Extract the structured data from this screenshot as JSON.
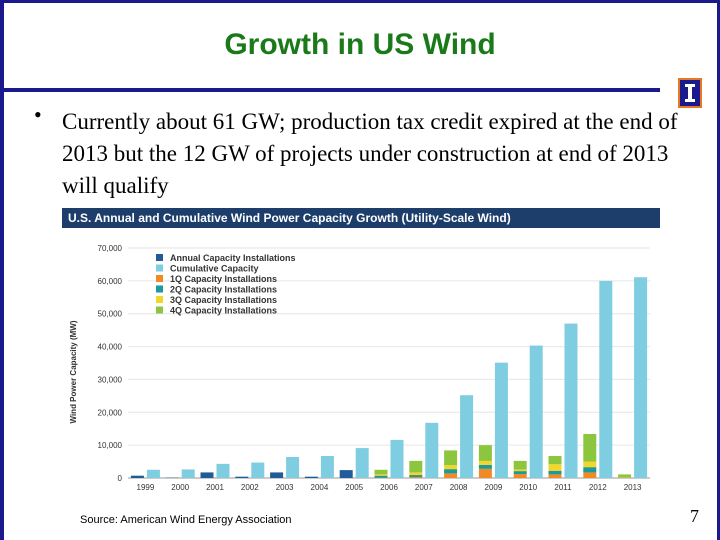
{
  "slide": {
    "title": "Growth in US Wind",
    "bullet_marker": "•",
    "bullet_text": "Currently about 61 GW; production tax credit expired at the end of 2013 but the 12 GW of projects under construction at end of 2013 will qualify",
    "source": "Source: American Wind Energy Association",
    "page_number": "7"
  },
  "colors": {
    "title": "#1a7a1a",
    "frame": "#1a1a8c",
    "annual": "#1f5c99",
    "cumulative": "#7ecde0",
    "q1": "#f08a24",
    "q2": "#1a9a9a",
    "q3": "#f2d629",
    "q4": "#8cc63f"
  },
  "chart_data": {
    "type": "bar",
    "title": "U.S. Annual and Cumulative Wind Power Capacity Growth (Utility-Scale Wind)",
    "ylabel": "Wind Power Capacity (MW)",
    "xlabel": "",
    "ylim": [
      0,
      70000
    ],
    "yticks": [
      0,
      10000,
      20000,
      30000,
      40000,
      50000,
      60000,
      70000
    ],
    "ytick_labels": [
      "0",
      "10,000",
      "20,000",
      "30,000",
      "40,000",
      "50,000",
      "60,000",
      "70,000"
    ],
    "categories": [
      "1999",
      "2000",
      "2001",
      "2002",
      "2003",
      "2004",
      "2005",
      "2006",
      "2007",
      "2008",
      "2009",
      "2010",
      "2011",
      "2012",
      "2013"
    ],
    "legend": [
      "Annual Capacity Installations",
      "Cumulative Capacity",
      "1Q Capacity Installations",
      "2Q Capacity Installations",
      "3Q Capacity Installations",
      "4Q Capacity Installations"
    ],
    "legend_position": "top-left",
    "series": [
      {
        "name": "Annual Capacity Installations",
        "values": [
          700,
          100,
          1700,
          400,
          1700,
          400,
          2400,
          null,
          null,
          null,
          null,
          null,
          null,
          null,
          null
        ]
      },
      {
        "name": "1Q Capacity Installations",
        "values": [
          null,
          null,
          null,
          null,
          null,
          null,
          null,
          100,
          300,
          1400,
          2800,
          1200,
          1100,
          1700,
          100
        ]
      },
      {
        "name": "2Q Capacity Installations",
        "values": [
          null,
          null,
          null,
          null,
          null,
          null,
          null,
          600,
          600,
          1300,
          1200,
          900,
          1100,
          1600,
          0
        ]
      },
      {
        "name": "3Q Capacity Installations",
        "values": [
          null,
          null,
          null,
          null,
          null,
          null,
          null,
          400,
          800,
          1200,
          1200,
          500,
          2000,
          1700,
          100
        ]
      },
      {
        "name": "4Q Capacity Installations",
        "values": [
          null,
          null,
          null,
          null,
          null,
          null,
          null,
          1400,
          3500,
          4500,
          4800,
          2600,
          2500,
          8400,
          900
        ]
      },
      {
        "name": "Cumulative Capacity",
        "values": [
          2500,
          2600,
          4300,
          4700,
          6400,
          6700,
          9100,
          11600,
          16800,
          25200,
          35100,
          40300,
          47000,
          60000,
          61100
        ]
      }
    ]
  }
}
